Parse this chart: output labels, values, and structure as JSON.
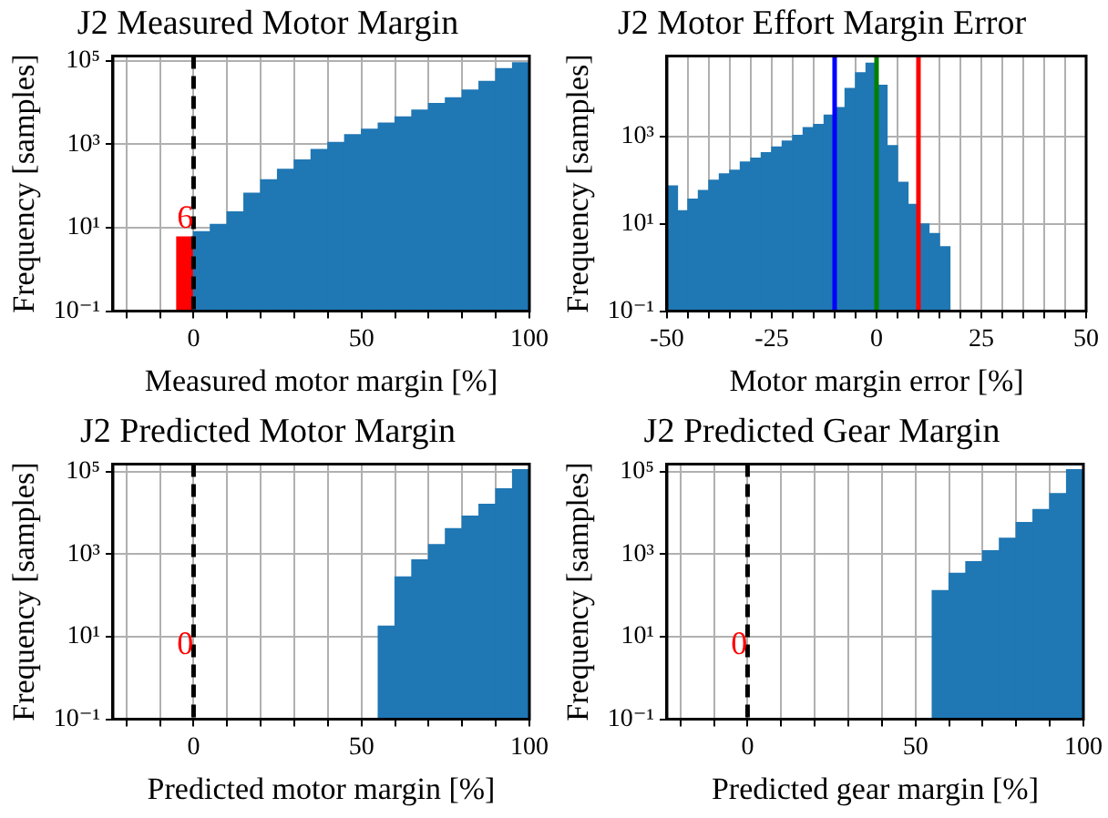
{
  "chart_data": [
    {
      "type": "histogram",
      "title": "J2 Measured Motor Margin",
      "xlabel": "Measured motor margin [%]",
      "ylabel": "Frequency [samples]",
      "bins": [
        -5,
        0,
        5,
        10,
        15,
        20,
        25,
        30,
        35,
        40,
        45,
        50,
        55,
        60,
        65,
        70,
        75,
        80,
        85,
        90,
        95,
        100
      ],
      "values": [
        6,
        8,
        12,
        24,
        67,
        140,
        250,
        420,
        750,
        1100,
        1700,
        2300,
        3200,
        4500,
        6600,
        9500,
        13000,
        20000,
        32000,
        65000,
        90000
      ],
      "colors": [
        "#ff0000",
        "#1f77b4",
        "#1f77b4",
        "#1f77b4",
        "#1f77b4",
        "#1f77b4",
        "#1f77b4",
        "#1f77b4",
        "#1f77b4",
        "#1f77b4",
        "#1f77b4",
        "#1f77b4",
        "#1f77b4",
        "#1f77b4",
        "#1f77b4",
        "#1f77b4",
        "#1f77b4",
        "#1f77b4",
        "#1f77b4",
        "#1f77b4",
        "#1f77b4"
      ],
      "value_labels": [
        "6",
        null,
        null,
        null,
        null,
        null,
        null,
        null,
        null,
        null,
        null,
        null,
        null,
        null,
        null,
        null,
        null,
        null,
        null,
        null,
        null
      ],
      "xlim": [
        -24,
        100
      ],
      "xticks": [
        {
          "value": -20,
          "label": null
        },
        {
          "value": -10,
          "label": null
        },
        0,
        {
          "value": 10,
          "label": null
        },
        {
          "value": 20,
          "label": null
        },
        {
          "value": 30,
          "label": null
        },
        {
          "value": 40,
          "label": null
        },
        50,
        {
          "value": 60,
          "label": null
        },
        {
          "value": 70,
          "label": null
        },
        {
          "value": 80,
          "label": null
        },
        {
          "value": 90,
          "label": null
        },
        100
      ],
      "ylim": [
        0.1,
        130000
      ],
      "yticks": [
        {
          "value": 0.1,
          "label": "10⁻¹"
        },
        {
          "value": 10,
          "label": "10¹"
        },
        {
          "value": 1000,
          "label": "10³"
        },
        {
          "value": 100000,
          "label": "10⁵"
        }
      ],
      "log": "y",
      "grid": true,
      "ref_lines": [
        {
          "axis": "x",
          "value": 0,
          "color": "#000000",
          "line_style": "dashed"
        }
      ]
    },
    {
      "type": "histogram",
      "title": "J2 Motor Effort Margin Error",
      "xlabel": "Motor margin error [%]",
      "ylabel": "Frequency [samples]",
      "bins": [
        -50,
        -47.5,
        -45,
        -42.5,
        -40,
        -37.5,
        -35,
        -32.5,
        -30,
        -27.5,
        -25,
        -22.5,
        -20,
        -17.5,
        -15,
        -12.5,
        -10,
        -7.5,
        -5,
        -2.5,
        0,
        2.5,
        5,
        7.5,
        10,
        12.5,
        15,
        17.5
      ],
      "values": [
        74,
        20,
        37,
        58,
        100,
        140,
        170,
        260,
        320,
        430,
        580,
        790,
        1070,
        1600,
        1900,
        3100,
        4600,
        12600,
        29000,
        48000,
        15000,
        620,
        90,
        28,
        10,
        6,
        3
      ],
      "color": "#1f77b4",
      "xlim": [
        -50,
        50
      ],
      "xticks": [
        -50,
        {
          "value": -45,
          "label": null
        },
        {
          "value": -40,
          "label": null
        },
        {
          "value": -35,
          "label": null
        },
        {
          "value": -30,
          "label": null
        },
        -25,
        {
          "value": -20,
          "label": null
        },
        {
          "value": -15,
          "label": null
        },
        {
          "value": -10,
          "label": null
        },
        {
          "value": -5,
          "label": null
        },
        0,
        {
          "value": 5,
          "label": null
        },
        {
          "value": 10,
          "label": null
        },
        {
          "value": 15,
          "label": null
        },
        {
          "value": 20,
          "label": null
        },
        25,
        {
          "value": 30,
          "label": null
        },
        {
          "value": 35,
          "label": null
        },
        {
          "value": 40,
          "label": null
        },
        {
          "value": 45,
          "label": null
        },
        50
      ],
      "ylim": [
        0.1,
        70000
      ],
      "yticks": [
        {
          "value": 0.1,
          "label": "10⁻¹"
        },
        {
          "value": 10,
          "label": "10¹"
        },
        {
          "value": 1000,
          "label": "10³"
        }
      ],
      "log": "y",
      "grid": true,
      "ref_lines": [
        {
          "axis": "x",
          "value": -10,
          "color": "#0000ff",
          "line_style": "solid"
        },
        {
          "axis": "x",
          "value": 0,
          "color": "#008000",
          "line_style": "solid"
        },
        {
          "axis": "x",
          "value": 10,
          "color": "#ff0000",
          "line_style": "solid"
        }
      ]
    },
    {
      "type": "histogram",
      "title": "J2 Predicted Motor Margin",
      "xlabel": "Predicted motor margin [%]",
      "ylabel": "Frequency [samples]",
      "bins": [
        55,
        60,
        65,
        70,
        75,
        80,
        85,
        90,
        95,
        100
      ],
      "values": [
        18,
        280,
        720,
        1700,
        4100,
        8300,
        16000,
        38000,
        110000
      ],
      "color": "#1f77b4",
      "xlim": [
        -24,
        100
      ],
      "xticks": [
        {
          "value": -20,
          "label": null
        },
        {
          "value": -10,
          "label": null
        },
        0,
        {
          "value": 10,
          "label": null
        },
        {
          "value": 20,
          "label": null
        },
        {
          "value": 30,
          "label": null
        },
        {
          "value": 40,
          "label": null
        },
        50,
        {
          "value": 60,
          "label": null
        },
        {
          "value": 70,
          "label": null
        },
        {
          "value": 80,
          "label": null
        },
        {
          "value": 90,
          "label": null
        },
        100
      ],
      "ylim": [
        0.1,
        150000
      ],
      "yticks": [
        {
          "value": 0.1,
          "label": "10⁻¹"
        },
        {
          "value": 10,
          "label": "10¹"
        },
        {
          "value": 1000,
          "label": "10³"
        },
        {
          "value": 100000,
          "label": "10⁵"
        }
      ],
      "log": "y",
      "grid": true,
      "annotations": [
        {
          "text": "0",
          "x": -2.5,
          "y": 6
        }
      ],
      "ref_lines": [
        {
          "axis": "x",
          "value": 0,
          "color": "#000000",
          "line_style": "dashed"
        }
      ]
    },
    {
      "type": "histogram",
      "title": "J2 Predicted Gear Margin",
      "xlabel": "Predicted gear margin [%]",
      "ylabel": "Frequency [samples]",
      "bins": [
        55,
        60,
        65,
        70,
        75,
        80,
        85,
        90,
        95,
        100
      ],
      "values": [
        130,
        340,
        650,
        1200,
        2400,
        5800,
        12000,
        29000,
        110000
      ],
      "color": "#1f77b4",
      "xlim": [
        -24,
        100
      ],
      "xticks": [
        {
          "value": -20,
          "label": null
        },
        {
          "value": -10,
          "label": null
        },
        0,
        {
          "value": 10,
          "label": null
        },
        {
          "value": 20,
          "label": null
        },
        {
          "value": 30,
          "label": null
        },
        {
          "value": 40,
          "label": null
        },
        50,
        {
          "value": 60,
          "label": null
        },
        {
          "value": 70,
          "label": null
        },
        {
          "value": 80,
          "label": null
        },
        {
          "value": 90,
          "label": null
        },
        100
      ],
      "ylim": [
        0.1,
        150000
      ],
      "yticks": [
        {
          "value": 0.1,
          "label": "10⁻¹"
        },
        {
          "value": 10,
          "label": "10¹"
        },
        {
          "value": 1000,
          "label": "10³"
        },
        {
          "value": 100000,
          "label": "10⁵"
        }
      ],
      "log": "y",
      "grid": true,
      "annotations": [
        {
          "text": "0",
          "x": -2.5,
          "y": 6
        }
      ],
      "ref_lines": [
        {
          "axis": "x",
          "value": 0,
          "color": "#000000",
          "line_style": "dashed"
        }
      ]
    }
  ]
}
